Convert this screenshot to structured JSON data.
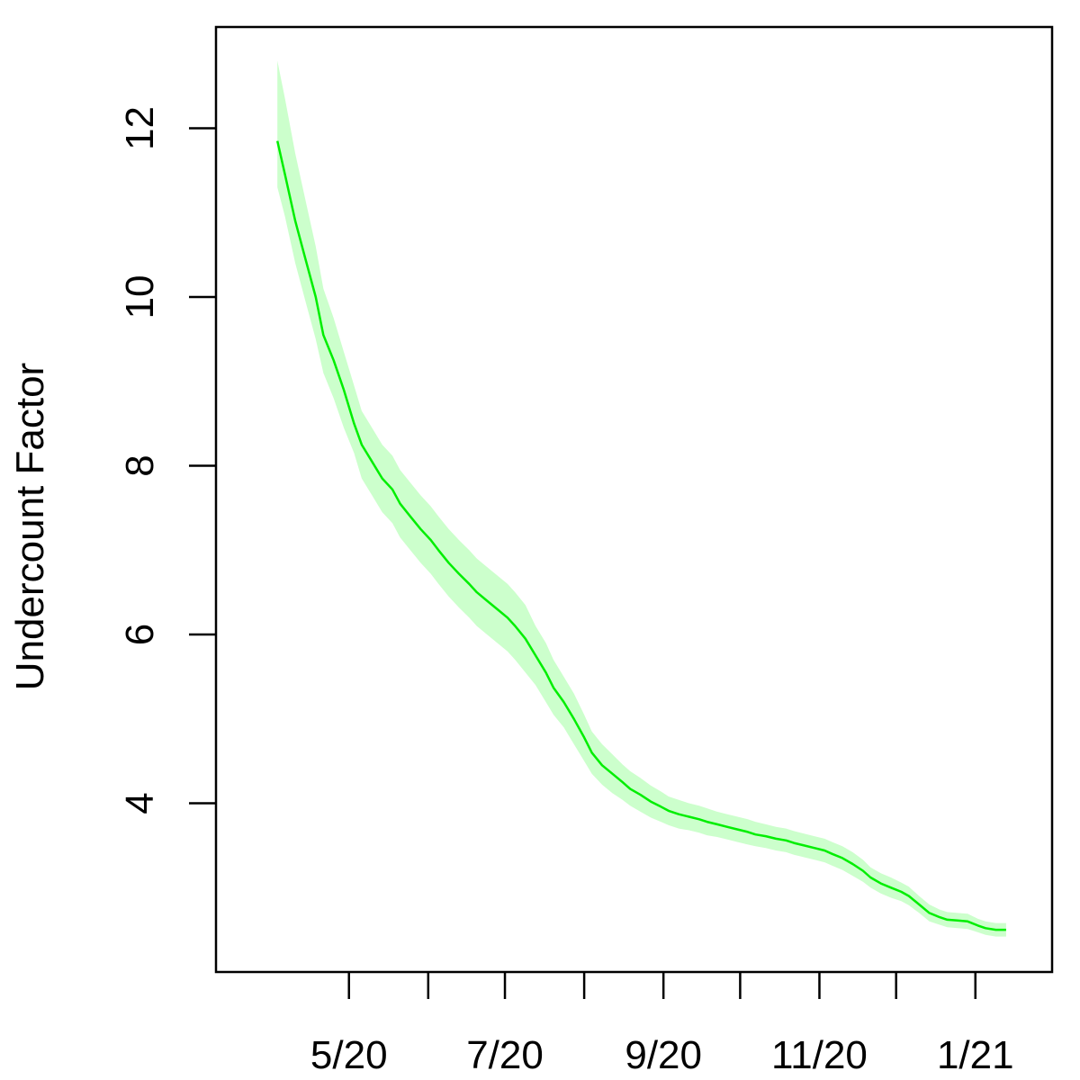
{
  "chart_data": {
    "type": "line",
    "title": "",
    "xlabel": "",
    "ylabel": "Undercount Factor",
    "xlim": [
      "2020-03-10",
      "2021-01-31"
    ],
    "ylim": [
      2.0,
      13.2
    ],
    "y_ticks": [
      4,
      6,
      8,
      10,
      12
    ],
    "y_tick_labels": [
      "4",
      "6",
      "8",
      "10",
      "12"
    ],
    "x_ticks": [
      "2020-05-01",
      "2020-06-01",
      "2020-07-01",
      "2020-08-01",
      "2020-09-01",
      "2020-10-01",
      "2020-11-01",
      "2020-12-01",
      "2021-01-01"
    ],
    "x_tick_labels": [
      "5/20",
      "",
      "7/20",
      "",
      "9/20",
      "",
      "11/20",
      "",
      "1/21"
    ],
    "grid": false,
    "legend": "none",
    "colors": {
      "line": "#00ee00",
      "band": "#ccffcc",
      "axis": "#000000",
      "background": "#ffffff"
    },
    "series": [
      {
        "x": [
          "2020-04-03",
          "2020-04-06",
          "2020-04-10",
          "2020-04-14",
          "2020-04-18",
          "2020-04-21",
          "2020-04-25",
          "2020-04-29",
          "2020-05-03",
          "2020-05-06",
          "2020-05-10",
          "2020-05-14",
          "2020-05-18",
          "2020-05-21",
          "2020-05-25",
          "2020-05-29",
          "2020-06-02",
          "2020-06-05",
          "2020-06-09",
          "2020-06-13",
          "2020-06-17",
          "2020-06-20",
          "2020-06-24",
          "2020-06-28",
          "2020-07-02",
          "2020-07-05",
          "2020-07-09",
          "2020-07-13",
          "2020-07-17",
          "2020-07-20",
          "2020-07-24",
          "2020-07-28",
          "2020-08-01",
          "2020-08-04",
          "2020-08-08",
          "2020-08-12",
          "2020-08-16",
          "2020-08-19",
          "2020-08-23",
          "2020-08-27",
          "2020-08-31",
          "2020-09-03",
          "2020-09-07",
          "2020-09-11",
          "2020-09-15",
          "2020-09-18",
          "2020-09-22",
          "2020-09-26",
          "2020-09-30",
          "2020-10-04",
          "2020-10-07",
          "2020-10-11",
          "2020-10-15",
          "2020-10-19",
          "2020-10-22",
          "2020-10-26",
          "2020-10-30",
          "2020-11-03",
          "2020-11-06",
          "2020-11-10",
          "2020-11-14",
          "2020-11-18",
          "2020-11-21",
          "2020-11-25",
          "2020-11-29",
          "2020-12-03",
          "2020-12-06",
          "2020-12-10",
          "2020-12-14",
          "2020-12-18",
          "2020-12-21",
          "2020-12-25",
          "2020-12-29",
          "2021-01-02",
          "2021-01-05",
          "2021-01-09",
          "2021-01-13"
        ],
        "y": [
          11.85,
          11.45,
          10.9,
          10.45,
          10.0,
          9.55,
          9.25,
          8.9,
          8.5,
          8.25,
          8.05,
          7.85,
          7.72,
          7.55,
          7.4,
          7.25,
          7.12,
          7.0,
          6.85,
          6.72,
          6.6,
          6.5,
          6.4,
          6.3,
          6.2,
          6.1,
          5.95,
          5.75,
          5.55,
          5.37,
          5.2,
          5.0,
          4.78,
          4.6,
          4.45,
          4.35,
          4.25,
          4.17,
          4.1,
          4.02,
          3.96,
          3.91,
          3.87,
          3.84,
          3.81,
          3.78,
          3.75,
          3.72,
          3.69,
          3.66,
          3.63,
          3.61,
          3.58,
          3.56,
          3.53,
          3.5,
          3.47,
          3.44,
          3.4,
          3.35,
          3.28,
          3.2,
          3.12,
          3.05,
          3.0,
          2.95,
          2.9,
          2.8,
          2.7,
          2.65,
          2.62,
          2.61,
          2.6,
          2.55,
          2.52,
          2.5,
          2.5
        ],
        "lower": [
          11.3,
          10.95,
          10.4,
          9.95,
          9.5,
          9.1,
          8.8,
          8.45,
          8.15,
          7.85,
          7.65,
          7.45,
          7.32,
          7.15,
          7.0,
          6.85,
          6.72,
          6.6,
          6.45,
          6.32,
          6.2,
          6.1,
          6.0,
          5.9,
          5.8,
          5.7,
          5.55,
          5.4,
          5.2,
          5.05,
          4.9,
          4.7,
          4.5,
          4.35,
          4.22,
          4.12,
          4.04,
          3.97,
          3.9,
          3.83,
          3.78,
          3.74,
          3.7,
          3.68,
          3.65,
          3.62,
          3.6,
          3.57,
          3.54,
          3.51,
          3.49,
          3.47,
          3.44,
          3.42,
          3.39,
          3.36,
          3.33,
          3.3,
          3.26,
          3.21,
          3.14,
          3.07,
          3.0,
          2.93,
          2.88,
          2.84,
          2.79,
          2.7,
          2.6,
          2.56,
          2.53,
          2.52,
          2.51,
          2.47,
          2.44,
          2.42,
          2.42
        ],
        "upper": [
          12.8,
          12.35,
          11.7,
          11.15,
          10.6,
          10.1,
          9.75,
          9.35,
          8.95,
          8.65,
          8.45,
          8.25,
          8.12,
          7.95,
          7.8,
          7.65,
          7.52,
          7.4,
          7.25,
          7.12,
          7.0,
          6.9,
          6.8,
          6.7,
          6.6,
          6.5,
          6.35,
          6.1,
          5.9,
          5.7,
          5.5,
          5.3,
          5.05,
          4.85,
          4.7,
          4.58,
          4.46,
          4.38,
          4.3,
          4.21,
          4.14,
          4.08,
          4.04,
          4.0,
          3.97,
          3.94,
          3.9,
          3.87,
          3.84,
          3.81,
          3.78,
          3.75,
          3.72,
          3.7,
          3.67,
          3.64,
          3.61,
          3.58,
          3.54,
          3.49,
          3.42,
          3.33,
          3.24,
          3.17,
          3.12,
          3.06,
          3.01,
          2.9,
          2.8,
          2.74,
          2.71,
          2.7,
          2.69,
          2.63,
          2.6,
          2.58,
          2.58
        ]
      }
    ]
  }
}
